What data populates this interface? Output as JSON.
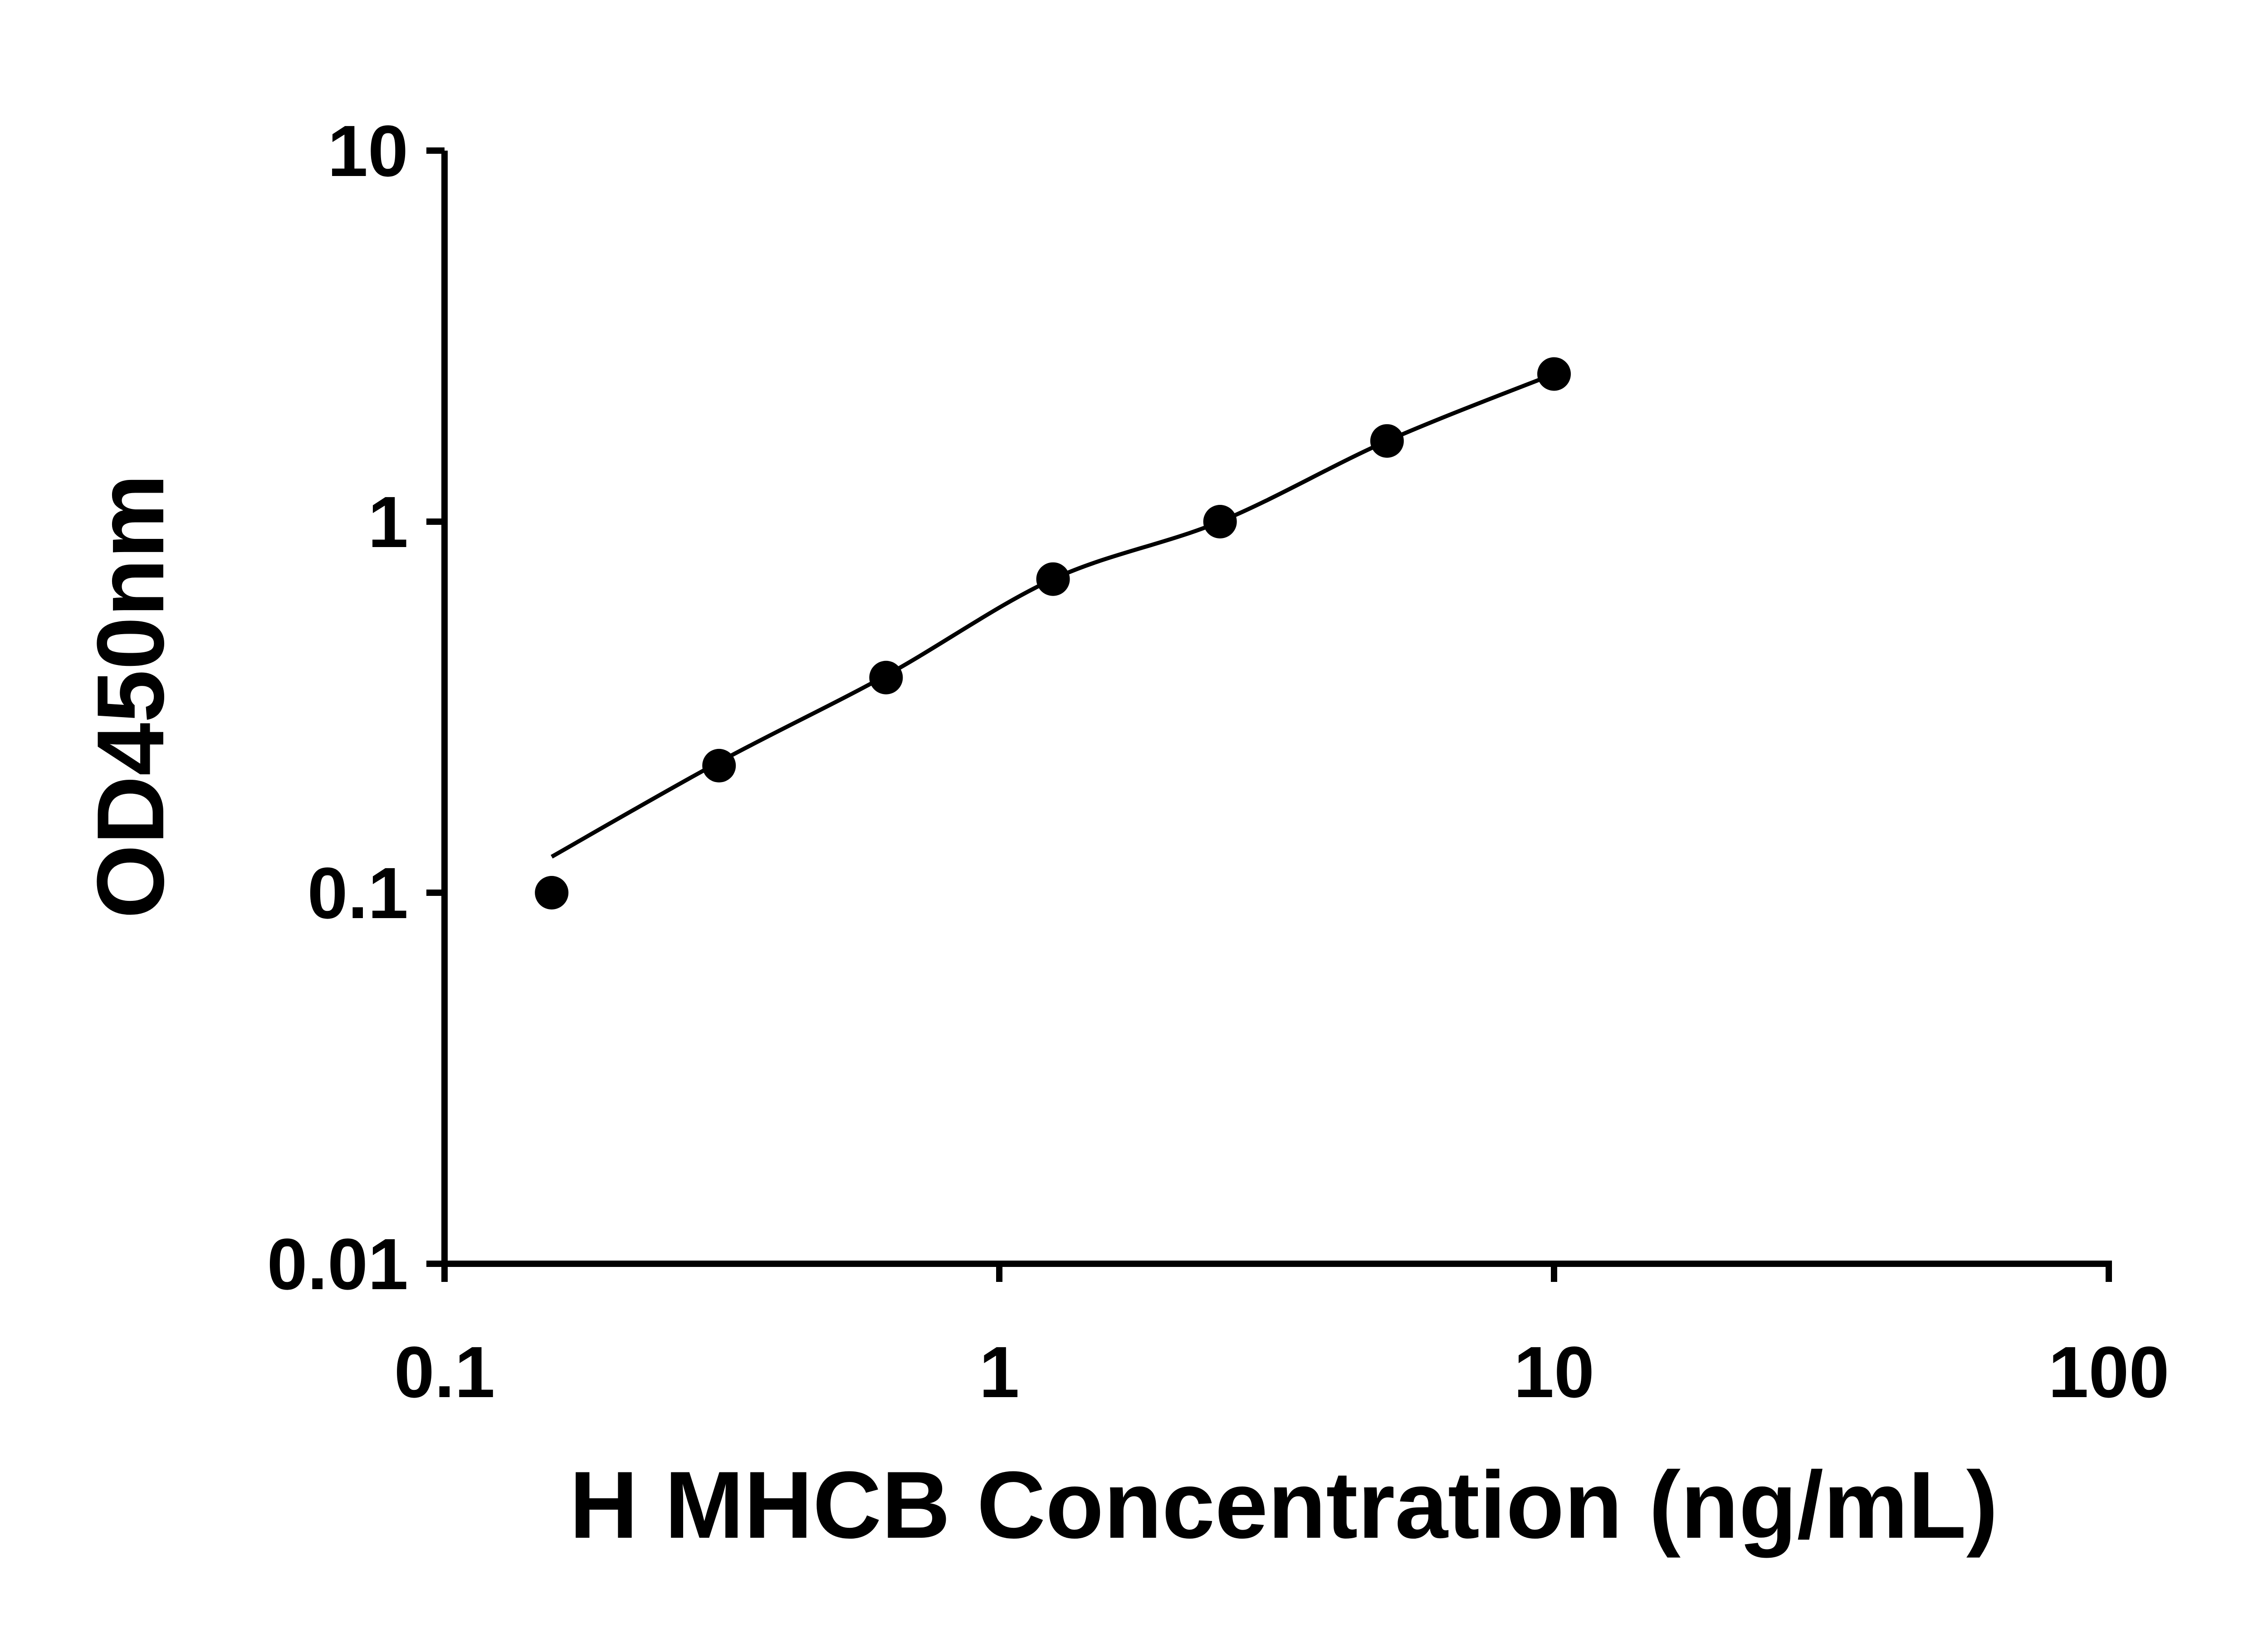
{
  "figure": {
    "background": "#ffffff"
  },
  "chart_data": {
    "type": "scatter",
    "title": "",
    "xlabel": "H MHCB Concentration (ng/mL)",
    "ylabel": "OD450nm",
    "x_scale": "log",
    "y_scale": "log",
    "xlim": [
      0.1,
      100
    ],
    "ylim": [
      0.01,
      10
    ],
    "grid": false,
    "legend": false,
    "axis_color": "#000000",
    "x_ticks": [
      {
        "v": 0.1,
        "label": "0.1"
      },
      {
        "v": 1,
        "label": "1"
      },
      {
        "v": 10,
        "label": "10"
      },
      {
        "v": 100,
        "label": "100"
      }
    ],
    "y_ticks": [
      {
        "v": 0.01,
        "label": "0.01"
      },
      {
        "v": 0.1,
        "label": "0.1"
      },
      {
        "v": 1,
        "label": "1"
      },
      {
        "v": 10,
        "label": "10"
      }
    ],
    "series": [
      {
        "marker": "circle",
        "marker_color": "#000000",
        "line_color": "#000000",
        "points": [
          {
            "x": 0.156,
            "y": 0.1
          },
          {
            "x": 0.3125,
            "y": 0.22
          },
          {
            "x": 0.625,
            "y": 0.38
          },
          {
            "x": 1.25,
            "y": 0.7
          },
          {
            "x": 2.5,
            "y": 1.0
          },
          {
            "x": 5,
            "y": 1.65
          },
          {
            "x": 10,
            "y": 2.5
          }
        ],
        "fit_line": [
          {
            "x": 0.156,
            "y": 0.125
          },
          {
            "x": 0.3125,
            "y": 0.225
          },
          {
            "x": 0.625,
            "y": 0.385
          },
          {
            "x": 1.25,
            "y": 0.7
          },
          {
            "x": 2.5,
            "y": 1.0
          },
          {
            "x": 5,
            "y": 1.65
          },
          {
            "x": 10,
            "y": 2.5
          }
        ]
      }
    ]
  }
}
